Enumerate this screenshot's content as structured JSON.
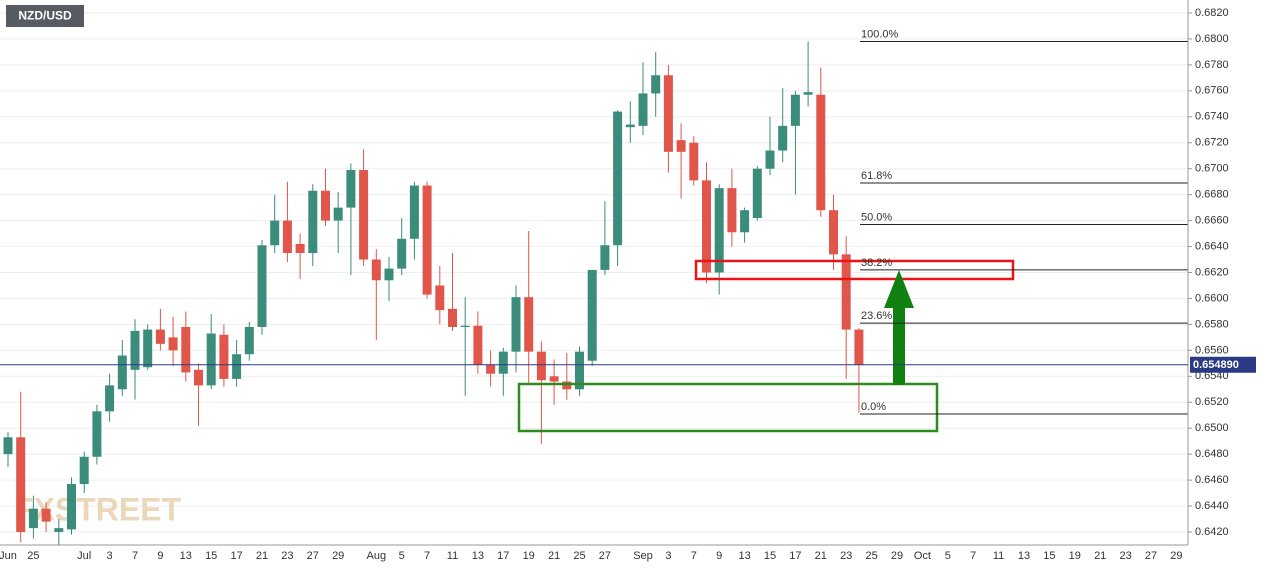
{
  "chart_data": {
    "type": "candlestick",
    "title": "NZD/USD",
    "watermark": "FXSTREET",
    "categories": [
      "Jun",
      null,
      "25",
      null,
      null,
      null,
      "Jul",
      null,
      "3",
      null,
      "7",
      null,
      "9",
      null,
      "13",
      null,
      "15",
      null,
      "17",
      null,
      "21",
      null,
      "23",
      null,
      "27",
      null,
      "29",
      null,
      null,
      "Aug",
      null,
      "5",
      null,
      "7",
      null,
      "11",
      null,
      "13",
      null,
      "17",
      null,
      "19",
      null,
      "21",
      null,
      "25",
      null,
      "27",
      null,
      null,
      "Sep",
      null,
      "3",
      null,
      "7",
      null,
      "9",
      null,
      "13",
      null,
      "15",
      null,
      "17",
      null,
      "21",
      null,
      "23",
      null,
      "25",
      null,
      "29",
      null,
      "Oct",
      null,
      "5",
      null,
      "7",
      null,
      "11",
      null,
      "13",
      null,
      "15",
      null,
      "19",
      null,
      "21",
      null,
      "23",
      null,
      "27",
      null,
      "29"
    ],
    "open": [
      0.648,
      0.6493,
      0.6423,
      0.6438,
      0.642,
      0.6422,
      0.6457,
      0.6478,
      0.6513,
      0.653,
      0.6545,
      0.6547,
      0.6576,
      0.657,
      0.6578,
      0.6545,
      0.6533,
      0.6572,
      0.6538,
      0.6557,
      0.6578,
      0.6641,
      0.666,
      0.6642,
      0.6635,
      0.6683,
      0.666,
      0.667,
      0.6699,
      0.663,
      0.6614,
      0.6623,
      0.6646,
      0.6687,
      0.661,
      0.6592,
      0.6578,
      0.6579,
      0.6549,
      0.6542,
      0.6559,
      0.6601,
      0.6559,
      0.654,
      0.6536,
      0.653,
      0.6552,
      0.6622,
      0.6641,
      0.6732,
      0.6733,
      0.6758,
      0.6772,
      0.6722,
      0.672,
      0.6691,
      0.662,
      0.6685,
      0.6651,
      0.6662,
      0.67,
      0.6714,
      0.6733,
      0.6757,
      0.6757,
      0.6668,
      0.6634,
      0.6576,
      null,
      null,
      null,
      null,
      null,
      null,
      null,
      null,
      null,
      null,
      null,
      null,
      null,
      null,
      null,
      null,
      null,
      null,
      null,
      null,
      null,
      null,
      null,
      null,
      null
    ],
    "high": [
      0.6497,
      0.6528,
      0.6448,
      0.6443,
      0.643,
      0.6462,
      0.6482,
      0.6518,
      0.6542,
      0.6568,
      0.6584,
      0.658,
      0.6592,
      0.6586,
      0.659,
      0.655,
      0.6588,
      0.658,
      0.6568,
      0.6582,
      0.6645,
      0.668,
      0.669,
      0.665,
      0.6688,
      0.67,
      0.6682,
      0.6704,
      0.6715,
      0.6638,
      0.6632,
      0.6662,
      0.669,
      0.669,
      0.6625,
      0.6635,
      0.6601,
      0.659,
      0.656,
      0.6562,
      0.661,
      0.6652,
      0.6567,
      0.6553,
      0.6558,
      0.6563,
      0.6622,
      0.6675,
      0.6745,
      0.6752,
      0.6782,
      0.679,
      0.678,
      0.6735,
      0.6725,
      0.6705,
      0.6688,
      0.67,
      0.667,
      0.6702,
      0.674,
      0.6762,
      0.676,
      0.6798,
      0.6778,
      0.668,
      0.6648,
      0.6577,
      null,
      null,
      null,
      null,
      null,
      null,
      null,
      null,
      null,
      null,
      null,
      null,
      null,
      null,
      null,
      null,
      null,
      null,
      null,
      null,
      null,
      null,
      null,
      null,
      null
    ],
    "low": [
      0.647,
      0.6412,
      0.6415,
      0.642,
      0.641,
      0.6418,
      0.645,
      0.6472,
      0.6505,
      0.6525,
      0.6522,
      0.6545,
      0.656,
      0.6548,
      0.6536,
      0.6502,
      0.653,
      0.6532,
      0.6532,
      0.6552,
      0.6572,
      0.6635,
      0.6628,
      0.6615,
      0.6625,
      0.6656,
      0.6635,
      0.6618,
      0.6625,
      0.6568,
      0.6598,
      0.6618,
      0.663,
      0.66,
      0.658,
      0.6575,
      0.6525,
      0.6542,
      0.6532,
      0.6525,
      0.6543,
      0.6535,
      0.6488,
      0.6518,
      0.6522,
      0.6525,
      0.6548,
      0.6618,
      0.6625,
      0.672,
      0.6726,
      0.674,
      0.6697,
      0.6677,
      0.6687,
      0.6612,
      0.6603,
      0.664,
      0.6643,
      0.666,
      0.6695,
      0.6705,
      0.668,
      0.6748,
      0.6663,
      0.6622,
      0.6538,
      0.6512,
      null,
      null,
      null,
      null,
      null,
      null,
      null,
      null,
      null,
      null,
      null,
      null,
      null,
      null,
      null,
      null,
      null,
      null,
      null,
      null,
      null,
      null,
      null,
      null,
      null
    ],
    "close": [
      0.6493,
      0.642,
      0.6438,
      0.6428,
      0.6423,
      0.6457,
      0.6478,
      0.6513,
      0.6533,
      0.6556,
      0.6575,
      0.6576,
      0.6565,
      0.656,
      0.6543,
      0.6533,
      0.6573,
      0.6538,
      0.6557,
      0.6578,
      0.6641,
      0.666,
      0.6635,
      0.6635,
      0.6683,
      0.666,
      0.667,
      0.6699,
      0.663,
      0.6614,
      0.6623,
      0.6646,
      0.6687,
      0.6603,
      0.6591,
      0.6578,
      0.6579,
      0.6549,
      0.6542,
      0.6559,
      0.6601,
      0.6559,
      0.6537,
      0.6536,
      0.653,
      0.6559,
      0.6622,
      0.6641,
      0.6744,
      0.6734,
      0.6758,
      0.6772,
      0.6713,
      0.6713,
      0.6691,
      0.662,
      0.6685,
      0.6651,
      0.6668,
      0.67,
      0.6714,
      0.6733,
      0.6757,
      0.6759,
      0.6668,
      0.6634,
      0.6576,
      0.6549,
      null,
      null,
      null,
      null,
      null,
      null,
      null,
      null,
      null,
      null,
      null,
      null,
      null,
      null,
      null,
      null,
      null,
      null,
      null,
      null,
      null,
      null,
      null,
      null,
      null
    ],
    "up_color": "#3b8c7b",
    "down_color": "#e0564a",
    "ylim": [
      0.641,
      0.683
    ],
    "yticks": [
      {
        "value": 0.642,
        "label": "0.6420"
      },
      {
        "value": 0.644,
        "label": "0.6440"
      },
      {
        "value": 0.646,
        "label": "0.6460"
      },
      {
        "value": 0.648,
        "label": "0.6480"
      },
      {
        "value": 0.65,
        "label": "0.6500"
      },
      {
        "value": 0.652,
        "label": "0.6520"
      },
      {
        "value": 0.654,
        "label": "0.6540"
      },
      {
        "value": 0.656,
        "label": "0.6560"
      },
      {
        "value": 0.658,
        "label": "0.6580"
      },
      {
        "value": 0.66,
        "label": "0.6600"
      },
      {
        "value": 0.662,
        "label": "0.6620"
      },
      {
        "value": 0.664,
        "label": "0.6640"
      },
      {
        "value": 0.666,
        "label": "0.6660"
      },
      {
        "value": 0.668,
        "label": "0.6680"
      },
      {
        "value": 0.67,
        "label": "0.6700"
      },
      {
        "value": 0.672,
        "label": "0.6720"
      },
      {
        "value": 0.674,
        "label": "0.6740"
      },
      {
        "value": 0.676,
        "label": "0.6760"
      },
      {
        "value": 0.678,
        "label": "0.6780"
      },
      {
        "value": 0.68,
        "label": "0.6800"
      },
      {
        "value": 0.682,
        "label": "0.6820"
      }
    ],
    "grid": true,
    "last_price": {
      "value": 0.65489,
      "label": "0.654890"
    },
    "fibonacci": [
      {
        "label": "100.0%",
        "price": 0.6798
      },
      {
        "label": "61.8%",
        "price": 0.6689
      },
      {
        "label": "50.0%",
        "price": 0.6657
      },
      {
        "label": "38.2%",
        "price": 0.6622
      },
      {
        "label": "23.6%",
        "price": 0.6581
      },
      {
        "label": "0.0%",
        "price": 0.6511
      }
    ]
  }
}
